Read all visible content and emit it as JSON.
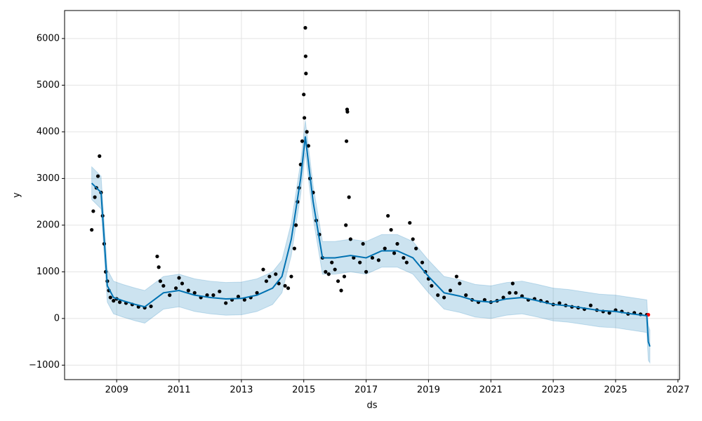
{
  "chart_data": {
    "type": "scatter",
    "x_label": "ds",
    "y_label": "y",
    "xlim": [
      2007.33,
      2027.05
    ],
    "ylim": [
      -1310,
      6600
    ],
    "xticks": [
      2009,
      2011,
      2013,
      2015,
      2017,
      2019,
      2021,
      2023,
      2025,
      2027
    ],
    "yticks": [
      {
        "value": -1000,
        "label": "−1000"
      },
      0,
      1000,
      2000,
      3000,
      4000,
      5000,
      6000
    ],
    "grid": true,
    "series": [
      {
        "color": "#000000",
        "x": [
          2008.2,
          2008.25,
          2008.3,
          2008.35,
          2008.4,
          2008.45,
          2008.5,
          2008.55,
          2008.6,
          2008.65,
          2008.7,
          2008.75,
          2008.8,
          2008.9,
          2009.0,
          2009.1,
          2009.3,
          2009.5,
          2009.7,
          2009.9,
          2010.1,
          2010.3,
          2010.35,
          2010.4,
          2010.5,
          2010.7,
          2010.9,
          2011.0,
          2011.1,
          2011.3,
          2011.5,
          2011.7,
          2011.9,
          2012.1,
          2012.3,
          2012.5,
          2012.7,
          2012.9,
          2013.1,
          2013.3,
          2013.5,
          2013.7,
          2013.8,
          2013.9,
          2014.1,
          2014.2,
          2014.4,
          2014.5,
          2014.6,
          2014.7,
          2014.75,
          2014.8,
          2014.85,
          2014.9,
          2014.95,
          2015.0,
          2015.02,
          2015.05,
          2015.06,
          2015.07,
          2015.1,
          2015.15,
          2015.2,
          2015.3,
          2015.4,
          2015.5,
          2015.6,
          2015.7,
          2015.8,
          2015.9,
          2016.0,
          2016.1,
          2016.2,
          2016.3,
          2016.35,
          2016.37,
          2016.39,
          2016.4,
          2016.45,
          2016.5,
          2016.6,
          2016.8,
          2016.9,
          2017.0,
          2017.2,
          2017.4,
          2017.6,
          2017.7,
          2017.8,
          2017.9,
          2018.0,
          2018.2,
          2018.3,
          2018.4,
          2018.5,
          2018.6,
          2018.8,
          2018.9,
          2019.0,
          2019.1,
          2019.3,
          2019.5,
          2019.7,
          2019.9,
          2020.0,
          2020.2,
          2020.4,
          2020.6,
          2020.8,
          2021.0,
          2021.2,
          2021.4,
          2021.6,
          2021.7,
          2021.8,
          2022.0,
          2022.2,
          2022.4,
          2022.6,
          2022.8,
          2023.0,
          2023.2,
          2023.4,
          2023.6,
          2023.8,
          2024.0,
          2024.2,
          2024.4,
          2024.6,
          2024.8,
          2025.0,
          2025.2,
          2025.4,
          2025.6,
          2025.8,
          2026.0
        ],
        "values": [
          1900,
          2300,
          2600,
          2800,
          3050,
          3480,
          2700,
          2200,
          1600,
          1000,
          800,
          600,
          450,
          380,
          420,
          350,
          330,
          300,
          250,
          230,
          260,
          1330,
          1100,
          800,
          700,
          500,
          650,
          870,
          750,
          600,
          550,
          450,
          500,
          500,
          580,
          330,
          400,
          470,
          400,
          450,
          550,
          1050,
          800,
          900,
          950,
          750,
          700,
          650,
          900,
          1500,
          2000,
          2500,
          2800,
          3300,
          3800,
          4800,
          4300,
          6230,
          5620,
          5250,
          4000,
          3700,
          3000,
          2700,
          2100,
          1800,
          1300,
          1000,
          950,
          1200,
          1050,
          800,
          600,
          900,
          2000,
          3800,
          4480,
          4430,
          2600,
          1700,
          1300,
          1200,
          1600,
          1000,
          1300,
          1250,
          1500,
          2200,
          1900,
          1400,
          1600,
          1300,
          1200,
          2050,
          1700,
          1500,
          1200,
          1000,
          850,
          700,
          500,
          450,
          600,
          900,
          750,
          500,
          400,
          350,
          400,
          350,
          380,
          450,
          550,
          750,
          550,
          480,
          400,
          420,
          380,
          350,
          300,
          330,
          280,
          250,
          230,
          200,
          280,
          180,
          150,
          120,
          180,
          150,
          100,
          120,
          90,
          80
        ]
      },
      {
        "color": "#ff0000",
        "x": [
          2026.05
        ],
        "values": [
          80
        ]
      }
    ],
    "forecast": {
      "color": "#0072B2",
      "band_color": "#0072B2",
      "x": [
        2008.2,
        2008.5,
        2008.7,
        2008.9,
        2009.2,
        2009.6,
        2009.9,
        2010.2,
        2010.5,
        2011.0,
        2011.5,
        2012.0,
        2012.5,
        2013.0,
        2013.5,
        2014.0,
        2014.3,
        2014.6,
        2014.9,
        2015.05,
        2015.3,
        2015.6,
        2016.0,
        2016.5,
        2017.0,
        2017.5,
        2018.0,
        2018.5,
        2019.0,
        2019.5,
        2020.0,
        2020.5,
        2021.0,
        2021.5,
        2022.0,
        2022.5,
        2023.0,
        2023.5,
        2024.0,
        2024.5,
        2025.0,
        2025.5,
        2026.0,
        2026.05,
        2026.1
      ],
      "values": [
        2900,
        2700,
        700,
        450,
        380,
        300,
        250,
        400,
        550,
        600,
        500,
        450,
        420,
        430,
        500,
        650,
        900,
        1700,
        3000,
        3900,
        2500,
        1300,
        1300,
        1350,
        1300,
        1450,
        1450,
        1300,
        900,
        550,
        480,
        380,
        350,
        420,
        450,
        380,
        300,
        270,
        220,
        170,
        150,
        100,
        60,
        -500,
        -600
      ],
      "lower": [
        2550,
        2350,
        350,
        100,
        30,
        -50,
        -100,
        50,
        200,
        250,
        150,
        100,
        70,
        80,
        150,
        300,
        550,
        1350,
        2650,
        3550,
        2150,
        950,
        950,
        1000,
        950,
        1100,
        1100,
        950,
        550,
        200,
        130,
        30,
        0,
        70,
        100,
        30,
        -50,
        -80,
        -130,
        -180,
        -200,
        -250,
        -300,
        -900,
        -950
      ],
      "upper": [
        3250,
        3050,
        1050,
        800,
        730,
        650,
        600,
        750,
        900,
        950,
        850,
        800,
        770,
        780,
        850,
        1000,
        1250,
        2050,
        3350,
        4250,
        2850,
        1650,
        1650,
        1700,
        1650,
        1800,
        1800,
        1650,
        1250,
        900,
        830,
        730,
        700,
        770,
        800,
        730,
        650,
        620,
        570,
        520,
        500,
        450,
        400,
        -150,
        -250
      ]
    }
  }
}
